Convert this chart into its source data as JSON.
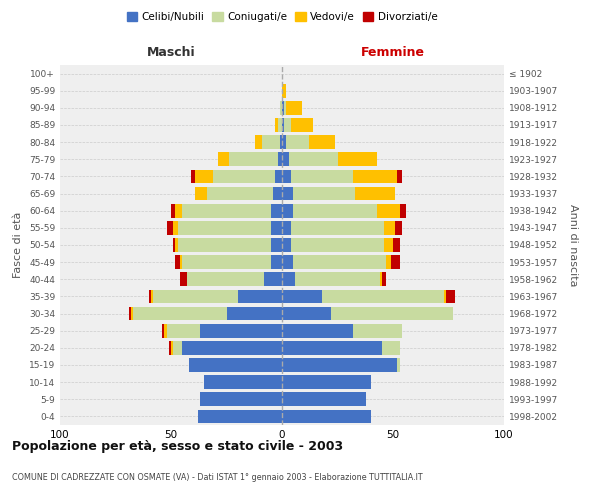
{
  "age_groups": [
    "0-4",
    "5-9",
    "10-14",
    "15-19",
    "20-24",
    "25-29",
    "30-34",
    "35-39",
    "40-44",
    "45-49",
    "50-54",
    "55-59",
    "60-64",
    "65-69",
    "70-74",
    "75-79",
    "80-84",
    "85-89",
    "90-94",
    "95-99",
    "100+"
  ],
  "birth_years": [
    "1998-2002",
    "1993-1997",
    "1988-1992",
    "1983-1987",
    "1978-1982",
    "1973-1977",
    "1968-1972",
    "1963-1967",
    "1958-1962",
    "1953-1957",
    "1948-1952",
    "1943-1947",
    "1938-1942",
    "1933-1937",
    "1928-1932",
    "1923-1927",
    "1918-1922",
    "1913-1917",
    "1908-1912",
    "1903-1907",
    "≤ 1902"
  ],
  "males_celibe": [
    38,
    37,
    35,
    42,
    45,
    37,
    25,
    20,
    8,
    5,
    5,
    5,
    5,
    4,
    3,
    2,
    1,
    0,
    0,
    0,
    0
  ],
  "males_coniugato": [
    0,
    0,
    0,
    0,
    4,
    15,
    42,
    38,
    35,
    40,
    42,
    42,
    40,
    30,
    28,
    22,
    8,
    2,
    1,
    0,
    0
  ],
  "males_vedovo": [
    0,
    0,
    0,
    0,
    1,
    1,
    1,
    1,
    0,
    1,
    1,
    2,
    3,
    5,
    8,
    5,
    3,
    1,
    0,
    0,
    0
  ],
  "males_divorziato": [
    0,
    0,
    0,
    0,
    1,
    1,
    1,
    1,
    3,
    2,
    1,
    3,
    2,
    0,
    2,
    0,
    0,
    0,
    0,
    0,
    0
  ],
  "females_nubile": [
    40,
    38,
    40,
    52,
    45,
    32,
    22,
    18,
    6,
    5,
    4,
    4,
    5,
    5,
    4,
    3,
    2,
    1,
    1,
    0,
    0
  ],
  "females_coniugata": [
    0,
    0,
    0,
    1,
    8,
    22,
    55,
    55,
    38,
    42,
    42,
    42,
    38,
    28,
    28,
    22,
    10,
    3,
    1,
    0,
    0
  ],
  "females_vedova": [
    0,
    0,
    0,
    0,
    0,
    0,
    0,
    1,
    1,
    2,
    4,
    5,
    10,
    18,
    20,
    18,
    12,
    10,
    7,
    2,
    0
  ],
  "females_divorziata": [
    0,
    0,
    0,
    0,
    0,
    0,
    0,
    4,
    2,
    4,
    3,
    3,
    3,
    0,
    2,
    0,
    0,
    0,
    0,
    0,
    0
  ],
  "colors": {
    "celibe_nubile": "#4472C4",
    "coniugato_coniugata": "#c8dba0",
    "vedovo_vedova": "#ffc000",
    "divorziato_divorziata": "#c00000"
  },
  "title": "Popolazione per età, sesso e stato civile - 2003",
  "subtitle": "COMUNE DI CADREZZATE CON OSMATE (VA) - Dati ISTAT 1° gennaio 2003 - Elaborazione TUTTITALIA.IT",
  "xlabel_left": "Maschi",
  "xlabel_right": "Femmine",
  "ylabel_left": "Fasce di età",
  "ylabel_right": "Anni di nascita",
  "xlim": 100,
  "background_color": "#ffffff",
  "plot_bg_color": "#efefef",
  "grid_color": "#cccccc",
  "legend_labels": [
    "Celibi/Nubili",
    "Coniugati/e",
    "Vedovi/e",
    "Divorziati/e"
  ]
}
